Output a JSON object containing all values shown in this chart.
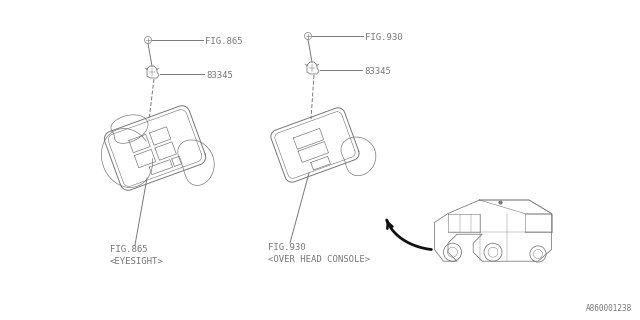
{
  "bg_color": "#ffffff",
  "line_color": "#777777",
  "text_color": "#777777",
  "fig865_top": "FIG.865",
  "fig930_top": "FIG.930",
  "part_number": "83345",
  "fig865_bot1": "FIG.865",
  "fig865_bot2": "<EYESIGHT>",
  "fig930_bot1": "FIG.930",
  "fig930_bot2": "<OVER HEAD CONSOLE>",
  "doc_number": "A860001238",
  "lw": 0.7,
  "fs": 6.5
}
